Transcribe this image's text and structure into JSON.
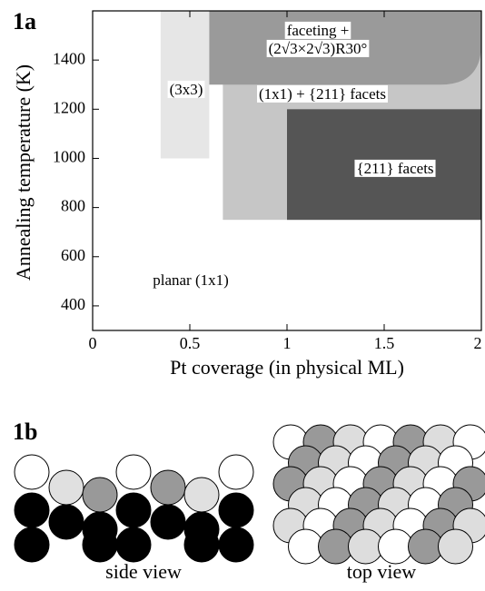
{
  "panels": {
    "a": "1a",
    "b": "1b"
  },
  "chart_data": {
    "type": "region",
    "xlabel": "Pt coverage (in physical ML)",
    "ylabel": "Annealing temperature (K)",
    "xlim": [
      0,
      2
    ],
    "ylim": [
      300,
      1600
    ],
    "xticks": [
      0,
      0.5,
      1,
      1.5,
      2
    ],
    "yticks": [
      400,
      600,
      800,
      1000,
      1200,
      1400
    ],
    "regions": [
      {
        "label": [
          "(1x1) + {211} facets"
        ],
        "x": [
          0.67,
          2
        ],
        "y": [
          750,
          1600
        ],
        "color": "#c6c6c6"
      },
      {
        "label": [
          "(3x3)"
        ],
        "x": [
          0.35,
          0.6
        ],
        "y": [
          1000,
          1600
        ],
        "color": "#e6e6e6"
      },
      {
        "label": [
          "faceting +",
          "(2√3×2√3)R30°"
        ],
        "x": [
          0.6,
          2
        ],
        "y": [
          1300,
          1600
        ],
        "color": "#9a9a9a"
      },
      {
        "label": [
          "{211} facets"
        ],
        "x": [
          1,
          2
        ],
        "y": [
          750,
          1200
        ],
        "color": "#555555"
      }
    ],
    "annotation": "planar (1x1)"
  },
  "views": {
    "side": "side view",
    "top": "top view"
  }
}
